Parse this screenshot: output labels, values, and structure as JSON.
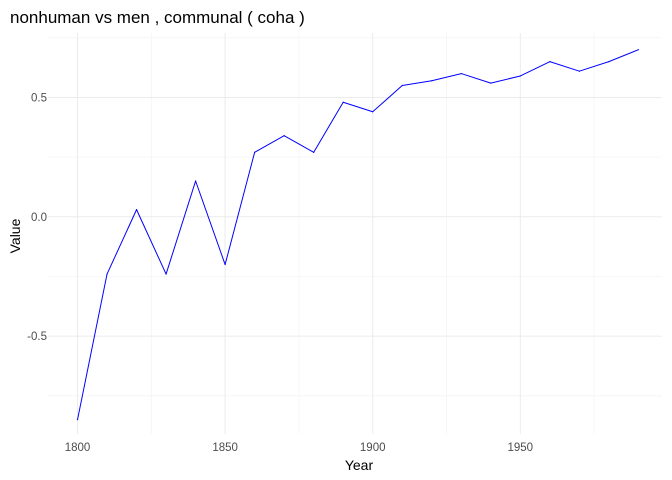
{
  "chart_data": {
    "type": "line",
    "title": "nonhuman vs men , communal ( coha )",
    "xlabel": "Year",
    "ylabel": "Value",
    "xlim": [
      1790,
      1998
    ],
    "ylim": [
      -0.91,
      0.77
    ],
    "x_ticks": [
      1800,
      1850,
      1900,
      1950
    ],
    "x_tick_labels": [
      "1800",
      "1850",
      "1900",
      "1950"
    ],
    "x_minor_ticks": [
      1825,
      1875,
      1925,
      1975
    ],
    "y_ticks": [
      -0.5,
      0.0,
      0.5
    ],
    "y_tick_labels": [
      "-0.5",
      "0.0",
      "0.5"
    ],
    "y_minor_ticks": [
      -0.75,
      -0.25,
      0.25,
      0.75
    ],
    "grid": true,
    "legend": "none",
    "line_color": "#0000ff",
    "series": [
      {
        "x": [
          1800,
          1810,
          1820,
          1830,
          1840,
          1850,
          1860,
          1870,
          1880,
          1890,
          1900,
          1910,
          1920,
          1930,
          1940,
          1950,
          1960,
          1970,
          1980,
          1990
        ],
        "values": [
          -0.85,
          -0.24,
          0.03,
          -0.24,
          0.15,
          -0.2,
          0.27,
          0.34,
          0.27,
          0.48,
          0.44,
          0.55,
          0.57,
          0.6,
          0.56,
          0.59,
          0.65,
          0.61,
          0.65,
          0.7
        ]
      }
    ]
  }
}
